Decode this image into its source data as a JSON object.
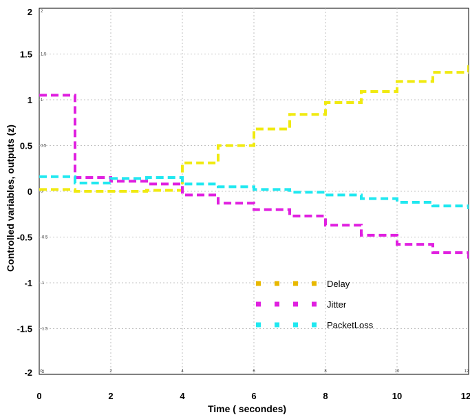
{
  "chart_data": {
    "type": "line",
    "step": true,
    "xlabel": "Time ( secondes)",
    "ylabel": "Controlled variables, outputs (z)",
    "xlim": [
      0,
      12
    ],
    "ylim": [
      -2,
      2
    ],
    "xticks": [
      "0",
      "2",
      "4",
      "6",
      "8",
      "10",
      "12"
    ],
    "yticks": [
      "2",
      "1.5",
      "1",
      "0.5",
      "0",
      "-0.5",
      "-1",
      "-1.5",
      "-2"
    ],
    "xticks_minor": [
      "0",
      "2",
      "4",
      "6",
      "8",
      "10",
      "12"
    ],
    "yticks_minor": [
      "2",
      "1.5",
      "1",
      "0.5",
      "0",
      "-0.5",
      "-1",
      "-1.5",
      "-2"
    ],
    "grid": true,
    "legend_position": "bottom-center",
    "series": [
      {
        "name": "Delay",
        "legend_color": "#e8b800",
        "color": "#f0ea10",
        "x": [
          0,
          1,
          2,
          3,
          4,
          5,
          6,
          7,
          8,
          9,
          10,
          11,
          12
        ],
        "y": [
          0.02,
          0.0,
          0.0,
          0.01,
          0.31,
          0.5,
          0.68,
          0.84,
          0.97,
          1.09,
          1.2,
          1.3,
          1.38
        ]
      },
      {
        "name": "Jitter",
        "legend_color": "#e020e0",
        "color": "#e020e0",
        "x": [
          0,
          1,
          2,
          3,
          4,
          5,
          6,
          7,
          8,
          9,
          10,
          11,
          12
        ],
        "y": [
          1.05,
          0.15,
          0.11,
          0.08,
          -0.04,
          -0.13,
          -0.2,
          -0.27,
          -0.37,
          -0.48,
          -0.58,
          -0.67,
          -0.72
        ]
      },
      {
        "name": "PacketLoss",
        "legend_color": "#20e8f0",
        "color": "#20e8f0",
        "x": [
          0,
          1,
          2,
          3,
          4,
          5,
          6,
          7,
          8,
          9,
          10,
          11,
          12
        ],
        "y": [
          0.16,
          0.09,
          0.14,
          0.15,
          0.08,
          0.05,
          0.02,
          -0.01,
          -0.04,
          -0.08,
          -0.12,
          -0.16,
          -0.18
        ]
      }
    ]
  }
}
